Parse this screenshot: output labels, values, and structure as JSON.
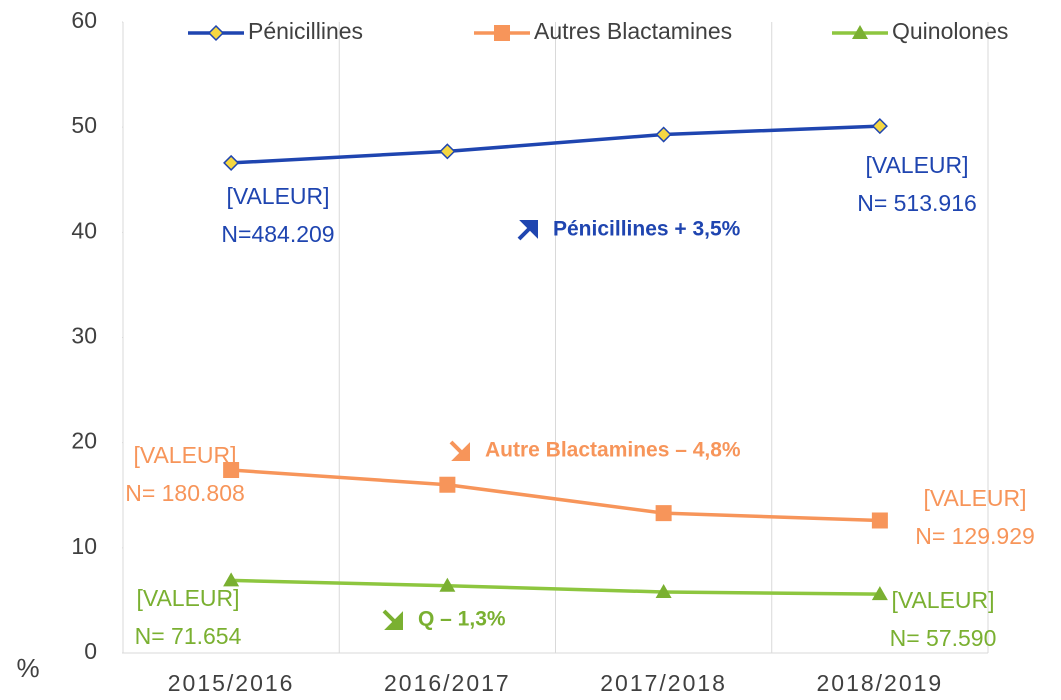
{
  "chart_data": {
    "type": "line",
    "y_axis_label": "%",
    "categories": [
      "2015/2016",
      "2016/2017",
      "2017/2018",
      "2018/2019"
    ],
    "ylim": [
      0,
      60
    ],
    "yticks": [
      0,
      10,
      20,
      30,
      40,
      50,
      60
    ],
    "vertical_grid": true,
    "legend_position": "top",
    "series": [
      {
        "name": "Pénicillines",
        "color": "#1f45b0",
        "marker": "diamond",
        "marker_color": "#f5d742",
        "values": [
          46.6,
          47.7,
          49.3,
          50.1
        ],
        "annotations": [
          [
            "[VALEUR]",
            "N=484.209"
          ],
          [
            "[VALEUR]",
            "N= 513.916"
          ]
        ],
        "trend_note": "Pénicillines + 3,5%"
      },
      {
        "name": "Autres Blactamines",
        "color": "#f7955a",
        "marker": "square",
        "marker_color": "#f7955a",
        "values": [
          17.4,
          16.0,
          13.3,
          12.6
        ],
        "annotations": [
          [
            "[VALEUR]",
            "N= 180.808"
          ],
          [
            "[VALEUR]",
            "N= 129.929"
          ]
        ],
        "trend_note": "Autre Blactamines – 4,8%"
      },
      {
        "name": "Quinolones",
        "color": "#8dc63f",
        "marker": "triangle",
        "marker_color": "#7ab031",
        "values": [
          6.9,
          6.4,
          5.8,
          5.6
        ],
        "annotations": [
          [
            "[VALEUR]",
            "N= 71.654"
          ],
          [
            "[VALEUR]",
            "N= 57.590"
          ]
        ],
        "trend_note": "Q – 1,3%"
      }
    ]
  }
}
